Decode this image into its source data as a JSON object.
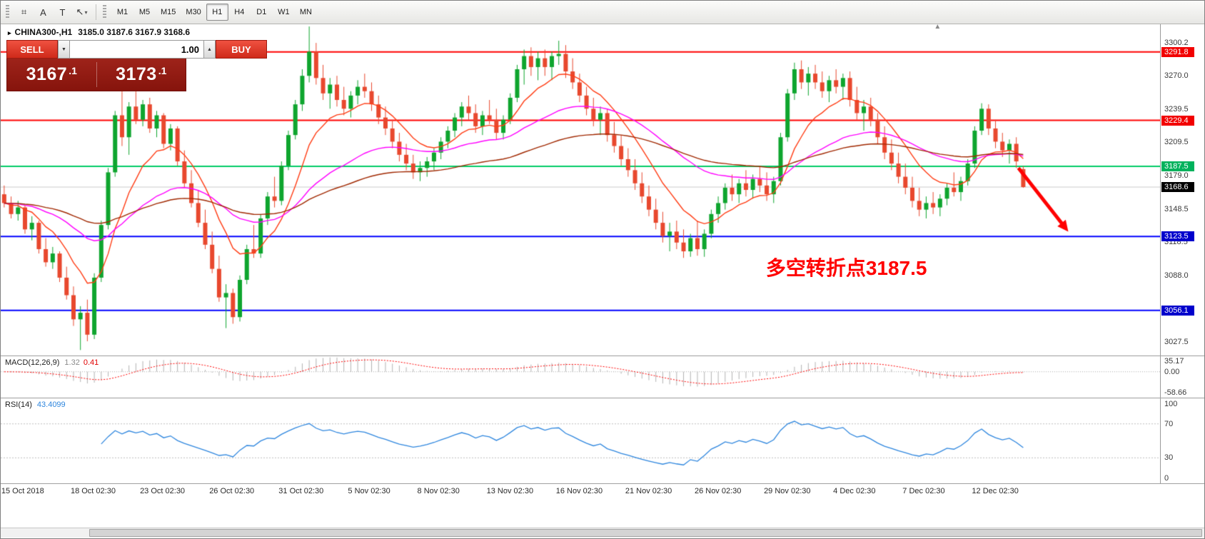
{
  "toolbar": {
    "tools": [
      {
        "name": "crosshair-tool",
        "glyph": "⌗"
      },
      {
        "name": "text-label-tool",
        "glyph": "A"
      },
      {
        "name": "text-tool",
        "glyph": "T"
      },
      {
        "name": "arrow-tool",
        "glyph": "↖"
      }
    ],
    "arrow_dropdown_glyph": "▾",
    "timeframes": [
      {
        "label": "M1",
        "active": false
      },
      {
        "label": "M5",
        "active": false
      },
      {
        "label": "M15",
        "active": false
      },
      {
        "label": "M30",
        "active": false
      },
      {
        "label": "H1",
        "active": true
      },
      {
        "label": "H4",
        "active": false
      },
      {
        "label": "D1",
        "active": false
      },
      {
        "label": "W1",
        "active": false
      },
      {
        "label": "MN",
        "active": false
      }
    ]
  },
  "symbol_bar": {
    "marker": "▸",
    "symbol": "CHINA300-,H1",
    "ohlc": "3185.0 3187.6 3167.9 3168.6"
  },
  "trade_panel": {
    "sell_label": "SELL",
    "buy_label": "BUY",
    "volume": "1.00",
    "step_down_glyph": "▼",
    "step_up_glyph": "▲",
    "sell_price_big": "3167",
    "sell_price_sup": ".1",
    "buy_price_big": "3173",
    "buy_price_sup": ".1"
  },
  "annotation": {
    "text": "多空转折点3187.5",
    "color": "#ff0000"
  },
  "chart_data": {
    "type": "candlestick",
    "symbol": "CHINA300-",
    "timeframe": "H1",
    "ohlc_display": {
      "open": "3185.0",
      "high": "3187.6",
      "low": "3167.9",
      "close": "3168.6"
    },
    "up_color": "#0ea52e",
    "down_color": "#e8482e",
    "price_range": [
      3015,
      3317
    ],
    "price_axis_ticks": [
      3300.2,
      3270.0,
      3239.5,
      3209.5,
      3179.0,
      3148.5,
      3118.5,
      3088.0,
      3057.5,
      3027.5
    ],
    "hlines": [
      {
        "value": 3291.8,
        "color": "#ff0000",
        "badge": "#f20000"
      },
      {
        "value": 3229.4,
        "color": "#ff0000",
        "badge": "#f20000"
      },
      {
        "value": 3187.5,
        "color": "#00cc66",
        "badge": "#00b25c"
      },
      {
        "value": 3168.6,
        "color": "#c8c8c8",
        "badge": "#000000",
        "current": true
      },
      {
        "value": 3123.5,
        "color": "#0000ff",
        "badge": "#0000cc"
      },
      {
        "value": 3056.1,
        "color": "#0000ff",
        "badge": "#0000cc"
      }
    ],
    "ma": [
      {
        "period": 10,
        "color": "#ff3c14"
      },
      {
        "period": 34,
        "color": "#ff00ff"
      },
      {
        "period": 72,
        "color": "#a02800"
      }
    ],
    "shift_marker_glyph": "▲",
    "arrow": {
      "from_i": 146.3,
      "from_price": 3186,
      "to_i": 153.5,
      "to_price": 3128,
      "color": "#ff0000"
    },
    "x_labels": [
      {
        "i": 0,
        "label": "15 Oct 2018"
      },
      {
        "i": 10,
        "label": "18 Oct 02:30"
      },
      {
        "i": 20,
        "label": "23 Oct 02:30"
      },
      {
        "i": 30,
        "label": "26 Oct 02:30"
      },
      {
        "i": 40,
        "label": "31 Oct 02:30"
      },
      {
        "i": 50,
        "label": "5 Nov 02:30"
      },
      {
        "i": 60,
        "label": "8 Nov 02:30"
      },
      {
        "i": 70,
        "label": "13 Nov 02:30"
      },
      {
        "i": 80,
        "label": "16 Nov 02:30"
      },
      {
        "i": 90,
        "label": "21 Nov 02:30"
      },
      {
        "i": 100,
        "label": "26 Nov 02:30"
      },
      {
        "i": 110,
        "label": "29 Nov 02:30"
      },
      {
        "i": 120,
        "label": "4 Dec 02:30"
      },
      {
        "i": 130,
        "label": "7 Dec 02:30"
      },
      {
        "i": 140,
        "label": "12 Dec 02:30"
      }
    ],
    "candles": [
      [
        3162,
        3170,
        3150,
        3154
      ],
      [
        3154,
        3160,
        3140,
        3144
      ],
      [
        3144,
        3156,
        3138,
        3150
      ],
      [
        3150,
        3152,
        3126,
        3130
      ],
      [
        3130,
        3142,
        3120,
        3136
      ],
      [
        3136,
        3138,
        3108,
        3112
      ],
      [
        3112,
        3122,
        3096,
        3100
      ],
      [
        3100,
        3114,
        3094,
        3108
      ],
      [
        3108,
        3110,
        3082,
        3086
      ],
      [
        3086,
        3096,
        3066,
        3070
      ],
      [
        3070,
        3078,
        3042,
        3048
      ],
      [
        3048,
        3060,
        3020,
        3054
      ],
      [
        3054,
        3066,
        3028,
        3034
      ],
      [
        3034,
        3090,
        3030,
        3086
      ],
      [
        3086,
        3138,
        3082,
        3134
      ],
      [
        3134,
        3186,
        3130,
        3182
      ],
      [
        3182,
        3238,
        3178,
        3234
      ],
      [
        3234,
        3262,
        3206,
        3214
      ],
      [
        3214,
        3246,
        3198,
        3242
      ],
      [
        3242,
        3256,
        3226,
        3230
      ],
      [
        3230,
        3248,
        3224,
        3244
      ],
      [
        3244,
        3250,
        3218,
        3222
      ],
      [
        3222,
        3238,
        3214,
        3234
      ],
      [
        3234,
        3236,
        3204,
        3208
      ],
      [
        3208,
        3226,
        3202,
        3222
      ],
      [
        3222,
        3224,
        3188,
        3192
      ],
      [
        3192,
        3202,
        3168,
        3172
      ],
      [
        3172,
        3184,
        3150,
        3154
      ],
      [
        3154,
        3166,
        3132,
        3136
      ],
      [
        3136,
        3148,
        3112,
        3116
      ],
      [
        3116,
        3128,
        3090,
        3094
      ],
      [
        3094,
        3106,
        3064,
        3068
      ],
      [
        3068,
        3080,
        3040,
        3072
      ],
      [
        3072,
        3076,
        3044,
        3050
      ],
      [
        3050,
        3088,
        3046,
        3084
      ],
      [
        3084,
        3116,
        3080,
        3112
      ],
      [
        3112,
        3134,
        3104,
        3108
      ],
      [
        3108,
        3144,
        3104,
        3140
      ],
      [
        3140,
        3164,
        3134,
        3160
      ],
      [
        3160,
        3178,
        3150,
        3156
      ],
      [
        3156,
        3192,
        3152,
        3188
      ],
      [
        3188,
        3220,
        3184,
        3216
      ],
      [
        3216,
        3248,
        3212,
        3244
      ],
      [
        3244,
        3276,
        3238,
        3270
      ],
      [
        3270,
        3315,
        3264,
        3292
      ],
      [
        3292,
        3300,
        3262,
        3268
      ],
      [
        3268,
        3280,
        3248,
        3254
      ],
      [
        3254,
        3268,
        3240,
        3262
      ],
      [
        3262,
        3270,
        3242,
        3248
      ],
      [
        3248,
        3260,
        3234,
        3240
      ],
      [
        3240,
        3256,
        3232,
        3252
      ],
      [
        3252,
        3266,
        3244,
        3260
      ],
      [
        3260,
        3272,
        3250,
        3256
      ],
      [
        3256,
        3264,
        3238,
        3244
      ],
      [
        3244,
        3252,
        3226,
        3232
      ],
      [
        3232,
        3242,
        3216,
        3222
      ],
      [
        3222,
        3230,
        3204,
        3210
      ],
      [
        3210,
        3218,
        3192,
        3198
      ],
      [
        3198,
        3208,
        3184,
        3190
      ],
      [
        3190,
        3198,
        3176,
        3182
      ],
      [
        3182,
        3192,
        3174,
        3186
      ],
      [
        3186,
        3196,
        3178,
        3192
      ],
      [
        3192,
        3204,
        3184,
        3200
      ],
      [
        3200,
        3214,
        3194,
        3210
      ],
      [
        3210,
        3224,
        3204,
        3220
      ],
      [
        3220,
        3236,
        3214,
        3232
      ],
      [
        3232,
        3246,
        3224,
        3242
      ],
      [
        3242,
        3252,
        3230,
        3236
      ],
      [
        3236,
        3244,
        3218,
        3224
      ],
      [
        3224,
        3238,
        3216,
        3234
      ],
      [
        3234,
        3248,
        3226,
        3230
      ],
      [
        3230,
        3240,
        3212,
        3218
      ],
      [
        3218,
        3234,
        3212,
        3230
      ],
      [
        3230,
        3254,
        3226,
        3250
      ],
      [
        3250,
        3280,
        3246,
        3276
      ],
      [
        3276,
        3294,
        3262,
        3288
      ],
      [
        3288,
        3296,
        3270,
        3278
      ],
      [
        3278,
        3292,
        3266,
        3286
      ],
      [
        3286,
        3294,
        3270,
        3278
      ],
      [
        3278,
        3292,
        3266,
        3288
      ],
      [
        3288,
        3302,
        3280,
        3290
      ],
      [
        3290,
        3298,
        3268,
        3274
      ],
      [
        3274,
        3286,
        3258,
        3264
      ],
      [
        3264,
        3272,
        3246,
        3252
      ],
      [
        3252,
        3260,
        3234,
        3240
      ],
      [
        3240,
        3250,
        3224,
        3230
      ],
      [
        3230,
        3242,
        3216,
        3236
      ],
      [
        3236,
        3240,
        3210,
        3216
      ],
      [
        3216,
        3228,
        3200,
        3206
      ],
      [
        3206,
        3216,
        3188,
        3194
      ],
      [
        3194,
        3204,
        3178,
        3184
      ],
      [
        3184,
        3194,
        3166,
        3172
      ],
      [
        3172,
        3182,
        3154,
        3160
      ],
      [
        3160,
        3170,
        3142,
        3148
      ],
      [
        3148,
        3158,
        3130,
        3136
      ],
      [
        3136,
        3146,
        3118,
        3124
      ],
      [
        3124,
        3136,
        3110,
        3128
      ],
      [
        3128,
        3138,
        3112,
        3118
      ],
      [
        3118,
        3130,
        3104,
        3110
      ],
      [
        3110,
        3126,
        3105,
        3122
      ],
      [
        3122,
        3138,
        3106,
        3112
      ],
      [
        3112,
        3130,
        3105,
        3126
      ],
      [
        3126,
        3148,
        3122,
        3144
      ],
      [
        3144,
        3160,
        3136,
        3154
      ],
      [
        3154,
        3172,
        3148,
        3168
      ],
      [
        3168,
        3180,
        3156,
        3162
      ],
      [
        3162,
        3176,
        3154,
        3172
      ],
      [
        3172,
        3184,
        3160,
        3166
      ],
      [
        3166,
        3180,
        3158,
        3176
      ],
      [
        3176,
        3188,
        3164,
        3170
      ],
      [
        3170,
        3182,
        3156,
        3162
      ],
      [
        3162,
        3178,
        3154,
        3174
      ],
      [
        3174,
        3218,
        3170,
        3214
      ],
      [
        3214,
        3258,
        3210,
        3254
      ],
      [
        3254,
        3282,
        3248,
        3276
      ],
      [
        3276,
        3284,
        3258,
        3264
      ],
      [
        3264,
        3278,
        3252,
        3272
      ],
      [
        3272,
        3280,
        3258,
        3264
      ],
      [
        3264,
        3274,
        3250,
        3256
      ],
      [
        3256,
        3270,
        3246,
        3266
      ],
      [
        3266,
        3276,
        3254,
        3260
      ],
      [
        3260,
        3272,
        3248,
        3268
      ],
      [
        3268,
        3274,
        3242,
        3248
      ],
      [
        3248,
        3260,
        3230,
        3236
      ],
      [
        3236,
        3248,
        3220,
        3242
      ],
      [
        3242,
        3250,
        3224,
        3230
      ],
      [
        3230,
        3236,
        3208,
        3214
      ],
      [
        3214,
        3224,
        3194,
        3200
      ],
      [
        3200,
        3212,
        3184,
        3190
      ],
      [
        3190,
        3200,
        3172,
        3178
      ],
      [
        3178,
        3190,
        3162,
        3168
      ],
      [
        3168,
        3178,
        3150,
        3156
      ],
      [
        3156,
        3168,
        3142,
        3148
      ],
      [
        3148,
        3160,
        3140,
        3154
      ],
      [
        3154,
        3164,
        3144,
        3150
      ],
      [
        3150,
        3162,
        3142,
        3158
      ],
      [
        3158,
        3172,
        3152,
        3168
      ],
      [
        3168,
        3182,
        3160,
        3164
      ],
      [
        3164,
        3178,
        3156,
        3174
      ],
      [
        3174,
        3194,
        3170,
        3190
      ],
      [
        3190,
        3224,
        3186,
        3220
      ],
      [
        3220,
        3245,
        3216,
        3240
      ],
      [
        3240,
        3244,
        3216,
        3222
      ],
      [
        3222,
        3230,
        3204,
        3210
      ],
      [
        3210,
        3218,
        3196,
        3202
      ],
      [
        3202,
        3212,
        3190,
        3208
      ],
      [
        3208,
        3214,
        3186,
        3192
      ],
      [
        3185,
        3187.6,
        3167.9,
        3168.6
      ]
    ],
    "macd": {
      "name": "MACD(12,26,9)",
      "value_main": "1.32",
      "value_signal": "0.41",
      "fast": 12,
      "slow": 26,
      "signal": 9,
      "range": [
        -58.66,
        35.17
      ],
      "ticks": [
        "35.17",
        "0.00",
        "-58.66"
      ]
    },
    "rsi": {
      "name": "RSI(14)",
      "value": "43.4099",
      "period": 14,
      "levels": [
        70,
        30
      ],
      "color": "#2e86de",
      "ticks": [
        "100",
        "70",
        "30",
        "0"
      ]
    }
  }
}
